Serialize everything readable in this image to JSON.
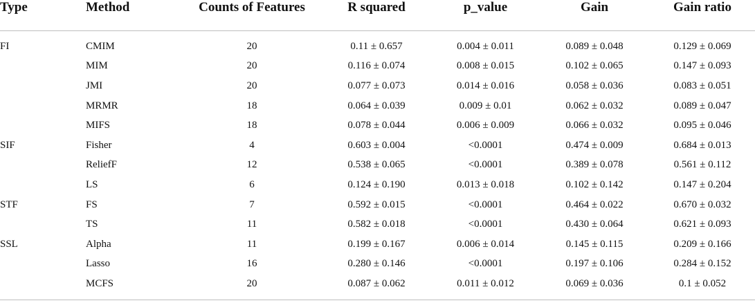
{
  "headers": {
    "type": "Type",
    "method": "Method",
    "counts": "Counts of Features",
    "r_squared": "R squared",
    "p_value": "p_value",
    "gain": "Gain",
    "gain_ratio": "Gain ratio"
  },
  "rows": [
    {
      "type": "FI",
      "method": "CMIM",
      "counts": "20",
      "r_squared": "0.11 ± 0.657",
      "p_value": "0.004 ± 0.011",
      "gain": "0.089 ± 0.048",
      "gain_ratio": "0.129 ± 0.069"
    },
    {
      "type": "",
      "method": "MIM",
      "counts": "20",
      "r_squared": "0.116 ± 0.074",
      "p_value": "0.008 ± 0.015",
      "gain": "0.102 ± 0.065",
      "gain_ratio": "0.147 ± 0.093"
    },
    {
      "type": "",
      "method": "JMI",
      "counts": "20",
      "r_squared": "0.077 ± 0.073",
      "p_value": "0.014 ± 0.016",
      "gain": "0.058 ± 0.036",
      "gain_ratio": "0.083 ± 0.051"
    },
    {
      "type": "",
      "method": "MRMR",
      "counts": "18",
      "r_squared": "0.064 ± 0.039",
      "p_value": "0.009 ± 0.01",
      "gain": "0.062 ± 0.032",
      "gain_ratio": "0.089 ± 0.047"
    },
    {
      "type": "",
      "method": "MIFS",
      "counts": "18",
      "r_squared": "0.078 ± 0.044",
      "p_value": "0.006 ± 0.009",
      "gain": "0.066 ± 0.032",
      "gain_ratio": "0.095 ± 0.046"
    },
    {
      "type": "SIF",
      "method": "Fisher",
      "counts": "4",
      "r_squared": "0.603 ± 0.004",
      "p_value": "<0.0001",
      "gain": "0.474 ± 0.009",
      "gain_ratio": "0.684 ± 0.013"
    },
    {
      "type": "",
      "method": "ReliefF",
      "counts": "12",
      "r_squared": "0.538 ± 0.065",
      "p_value": "<0.0001",
      "gain": "0.389 ± 0.078",
      "gain_ratio": "0.561 ± 0.112"
    },
    {
      "type": "",
      "method": "LS",
      "counts": "6",
      "r_squared": "0.124 ± 0.190",
      "p_value": "0.013 ± 0.018",
      "gain": "0.102 ± 0.142",
      "gain_ratio": "0.147 ± 0.204"
    },
    {
      "type": "STF",
      "method": "FS",
      "counts": "7",
      "r_squared": "0.592 ± 0.015",
      "p_value": "<0.0001",
      "gain": "0.464 ± 0.022",
      "gain_ratio": "0.670 ± 0.032"
    },
    {
      "type": "",
      "method": "TS",
      "counts": "11",
      "r_squared": "0.582 ± 0.018",
      "p_value": "<0.0001",
      "gain": "0.430 ± 0.064",
      "gain_ratio": "0.621 ± 0.093"
    },
    {
      "type": "SSL",
      "method": "Alpha",
      "counts": "11",
      "r_squared": "0.199 ± 0.167",
      "p_value": "0.006 ± 0.014",
      "gain": "0.145 ± 0.115",
      "gain_ratio": "0.209 ± 0.166"
    },
    {
      "type": "",
      "method": "Lasso",
      "counts": "16",
      "r_squared": "0.280 ± 0.146",
      "p_value": "<0.0001",
      "gain": "0.197 ± 0.106",
      "gain_ratio": "0.284 ± 0.152"
    },
    {
      "type": "",
      "method": "MCFS",
      "counts": "20",
      "r_squared": "0.087 ± 0.062",
      "p_value": "0.011 ± 0.012",
      "gain": "0.069 ± 0.036",
      "gain_ratio": "0.1 ± 0.052"
    }
  ]
}
